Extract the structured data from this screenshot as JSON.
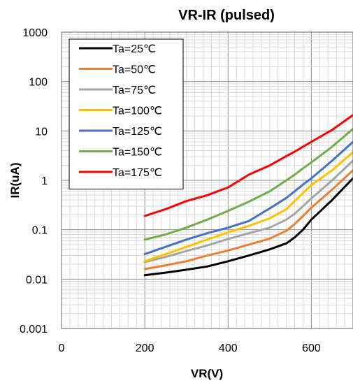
{
  "chart_data": {
    "type": "line",
    "title": "VR-IR (pulsed)",
    "xlabel": "VR(V)",
    "ylabel": "IR(uA)",
    "xlim": [
      0,
      700
    ],
    "ylim": [
      0.001,
      1000
    ],
    "yscale": "log",
    "grid": true,
    "legend_position": "top-left",
    "x_ticks": [
      "0",
      "200",
      "400",
      "600"
    ],
    "y_ticks": [
      "1000",
      "100",
      "10",
      "1",
      "0.1",
      "0.01",
      "0.001"
    ],
    "series": [
      {
        "name": "Ta=25℃",
        "color": "#000000",
        "x": [
          200,
          250,
          300,
          350,
          400,
          450,
          500,
          540,
          560,
          580,
          600,
          650,
          700
        ],
        "y": [
          0.012,
          0.0135,
          0.0155,
          0.018,
          0.023,
          0.03,
          0.04,
          0.053,
          0.07,
          0.1,
          0.16,
          0.4,
          1.1
        ]
      },
      {
        "name": "Ta=50℃",
        "color": "#ED7D31",
        "x": [
          200,
          250,
          300,
          350,
          400,
          450,
          500,
          540,
          560,
          580,
          600,
          650,
          700
        ],
        "y": [
          0.016,
          0.019,
          0.023,
          0.03,
          0.038,
          0.05,
          0.066,
          0.095,
          0.13,
          0.19,
          0.28,
          0.65,
          1.6
        ]
      },
      {
        "name": "Ta=75℃",
        "color": "#A5A5A5",
        "x": [
          200,
          250,
          300,
          350,
          400,
          450,
          500,
          540,
          560,
          580,
          600,
          650,
          700
        ],
        "y": [
          0.022,
          0.028,
          0.037,
          0.048,
          0.065,
          0.085,
          0.11,
          0.16,
          0.21,
          0.3,
          0.43,
          1.0,
          2.5
        ]
      },
      {
        "name": "Ta=100℃",
        "color": "#FFC000",
        "x": [
          200,
          250,
          300,
          350,
          400,
          450,
          500,
          540,
          560,
          580,
          600,
          650,
          700
        ],
        "y": [
          0.023,
          0.032,
          0.045,
          0.063,
          0.088,
          0.12,
          0.17,
          0.26,
          0.38,
          0.55,
          0.8,
          1.6,
          3.7
        ]
      },
      {
        "name": "Ta=125℃",
        "color": "#4472C4",
        "x": [
          200,
          250,
          300,
          350,
          400,
          450,
          500,
          540,
          560,
          580,
          600,
          650,
          700
        ],
        "y": [
          0.032,
          0.045,
          0.063,
          0.085,
          0.11,
          0.15,
          0.27,
          0.44,
          0.6,
          0.82,
          1.1,
          2.5,
          6.0
        ]
      },
      {
        "name": "Ta=150℃",
        "color": "#70AD47",
        "x": [
          200,
          250,
          300,
          350,
          400,
          450,
          500,
          540,
          560,
          580,
          600,
          650,
          700
        ],
        "y": [
          0.063,
          0.08,
          0.11,
          0.16,
          0.24,
          0.37,
          0.6,
          1.0,
          1.3,
          1.75,
          2.3,
          4.8,
          11
        ]
      },
      {
        "name": "Ta=175℃",
        "color": "#FF0000",
        "x": [
          200,
          250,
          300,
          350,
          400,
          450,
          500,
          540,
          560,
          580,
          600,
          650,
          700
        ],
        "y": [
          0.19,
          0.26,
          0.38,
          0.5,
          0.72,
          1.3,
          2.0,
          3.1,
          3.8,
          4.8,
          6.0,
          10.5,
          21
        ]
      }
    ]
  }
}
